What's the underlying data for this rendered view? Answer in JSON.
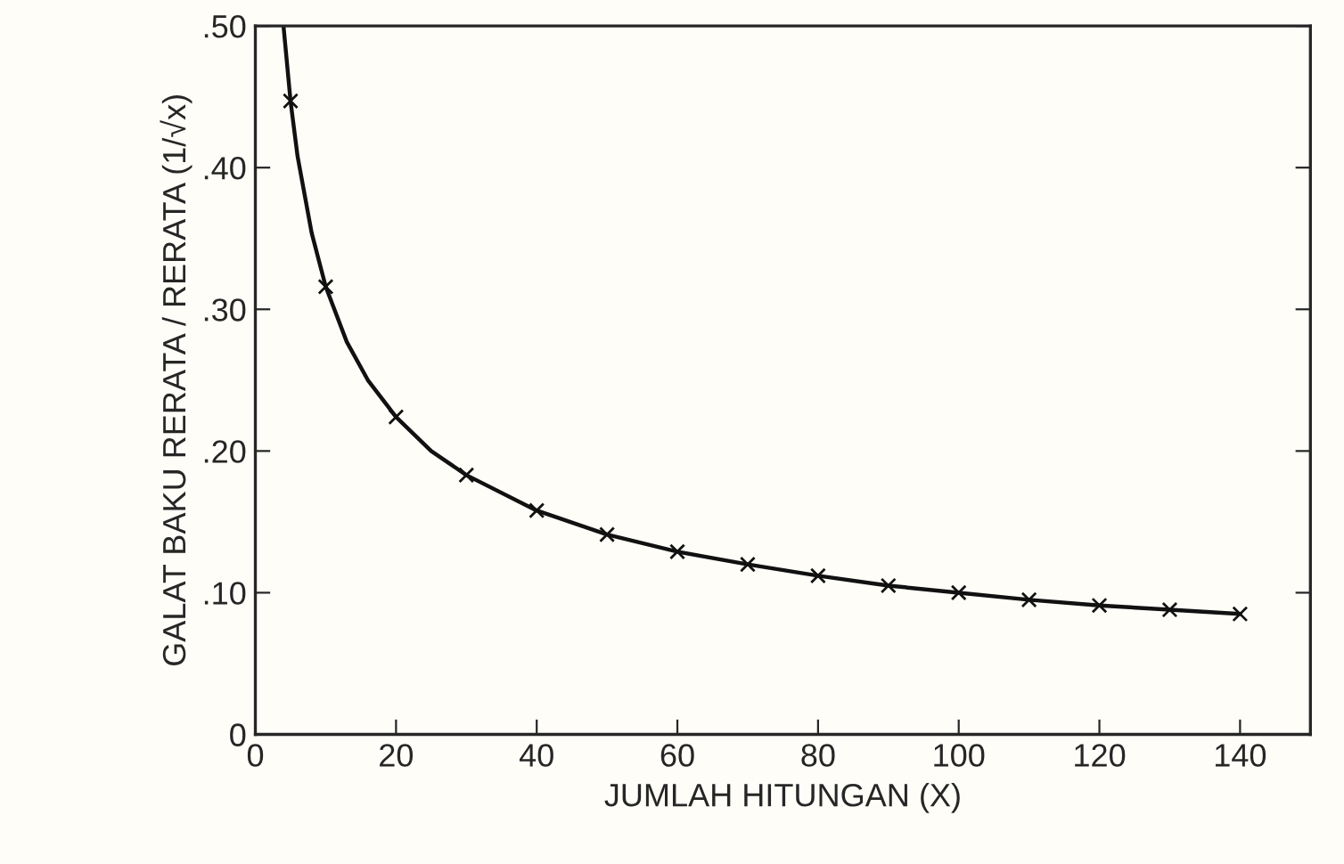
{
  "chart_data": {
    "type": "line",
    "xlabel": "JUMLAH HITUNGAN (X)",
    "ylabel": "GALAT BAKU RERATA / RERATA (1/√x)",
    "xlim": [
      0,
      150
    ],
    "xticks": [
      0,
      20,
      40,
      60,
      80,
      100,
      120,
      140
    ],
    "ylim": [
      0,
      0.5
    ],
    "yticks": [
      0,
      {
        "value": 0.1,
        "label": ".10"
      },
      {
        "value": 0.2,
        "label": ".20"
      },
      {
        "value": 0.3,
        "label": ".30"
      },
      {
        "value": 0.4,
        "label": ".40"
      },
      {
        "value": 0.5,
        "label": ".50"
      }
    ],
    "grid": false,
    "series": [
      {
        "color": "#111111",
        "marker": "none",
        "line_style": "solid",
        "x": [
          4,
          5,
          6,
          8,
          10,
          13,
          16,
          20,
          25,
          30,
          40,
          50,
          60,
          70,
          80,
          90,
          100,
          110,
          120,
          130,
          140
        ],
        "values": [
          0.5,
          0.447,
          0.408,
          0.354,
          0.316,
          0.277,
          0.25,
          0.224,
          0.2,
          0.183,
          0.158,
          0.141,
          0.129,
          0.12,
          0.112,
          0.105,
          0.1,
          0.095,
          0.091,
          0.088,
          0.085
        ]
      },
      {
        "type": "scatter",
        "color": "#111111",
        "marker": "cross",
        "x": [
          5,
          10,
          20,
          30,
          40,
          50,
          60,
          70,
          80,
          90,
          100,
          110,
          120,
          130,
          140
        ],
        "values": [
          0.447,
          0.316,
          0.224,
          0.183,
          0.158,
          0.141,
          0.129,
          0.12,
          0.112,
          0.105,
          0.1,
          0.095,
          0.091,
          0.088,
          0.085
        ]
      }
    ]
  }
}
